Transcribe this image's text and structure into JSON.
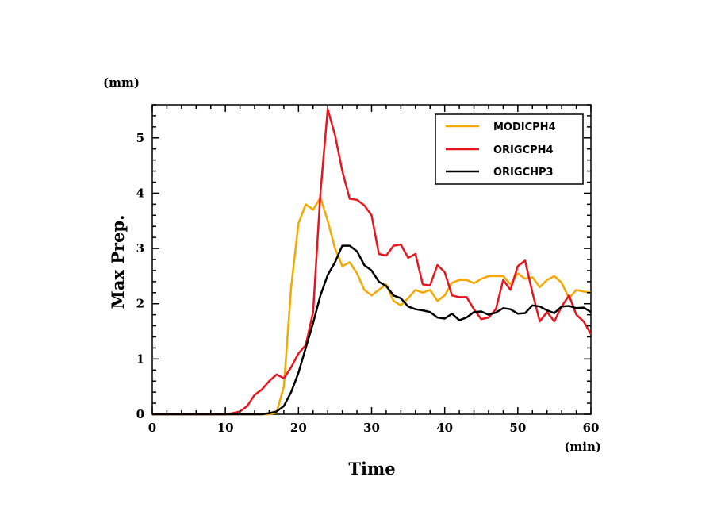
{
  "chart_data": {
    "type": "line",
    "title": "",
    "xlabel": "Time",
    "ylabel": "Max Prep.",
    "xunit": "(min)",
    "yunit": "(mm)",
    "xlim": [
      0,
      60
    ],
    "ylim": [
      0,
      5.6
    ],
    "xticks": [
      0,
      10,
      20,
      30,
      40,
      50,
      60
    ],
    "yticks": [
      0,
      1,
      2,
      3,
      4,
      5
    ],
    "grid": false,
    "legend_position": "top-right",
    "series": [
      {
        "name": "MODICPH4",
        "color": "#f5a800",
        "x": [
          0,
          1,
          2,
          3,
          4,
          5,
          6,
          7,
          8,
          9,
          10,
          11,
          12,
          13,
          14,
          15,
          16,
          17,
          18,
          19,
          20,
          21,
          22,
          23,
          24,
          25,
          26,
          27,
          28,
          29,
          30,
          31,
          32,
          33,
          34,
          35,
          36,
          37,
          38,
          39,
          40,
          41,
          42,
          43,
          44,
          45,
          46,
          47,
          48,
          49,
          50,
          51,
          52,
          53,
          54,
          55,
          56,
          57,
          58,
          59,
          60
        ],
        "y": [
          0,
          0,
          0,
          0,
          0,
          0,
          0,
          0,
          0,
          0,
          0,
          0,
          0,
          0,
          0,
          0,
          0,
          0.03,
          0.5,
          2.3,
          3.45,
          3.8,
          3.7,
          3.92,
          3.5,
          3.0,
          2.68,
          2.75,
          2.55,
          2.25,
          2.15,
          2.25,
          2.35,
          2.05,
          1.97,
          2.1,
          2.25,
          2.2,
          2.25,
          2.05,
          2.15,
          2.38,
          2.43,
          2.43,
          2.37,
          2.45,
          2.5,
          2.5,
          2.5,
          2.35,
          2.55,
          2.45,
          2.48,
          2.3,
          2.43,
          2.5,
          2.38,
          2.1,
          2.25,
          2.22,
          2.2
        ]
      },
      {
        "name": "ORIGCPH4",
        "color": "#e8141e",
        "x": [
          0,
          1,
          2,
          3,
          4,
          5,
          6,
          7,
          8,
          9,
          10,
          11,
          12,
          13,
          14,
          15,
          16,
          17,
          18,
          19,
          20,
          21,
          22,
          23,
          24,
          25,
          26,
          27,
          28,
          29,
          30,
          31,
          32,
          33,
          34,
          35,
          36,
          37,
          38,
          39,
          40,
          41,
          42,
          43,
          44,
          45,
          46,
          47,
          48,
          49,
          50,
          51,
          52,
          53,
          54,
          55,
          56,
          57,
          58,
          59,
          60
        ],
        "y": [
          0,
          0,
          0,
          0,
          0,
          0,
          0,
          0,
          0,
          0,
          0,
          0.02,
          0.05,
          0.15,
          0.35,
          0.45,
          0.6,
          0.72,
          0.65,
          0.85,
          1.1,
          1.25,
          1.85,
          4.0,
          5.52,
          5.05,
          4.4,
          3.9,
          3.88,
          3.78,
          3.6,
          2.9,
          2.87,
          3.05,
          3.07,
          2.83,
          2.9,
          2.35,
          2.33,
          2.7,
          2.57,
          2.15,
          2.12,
          2.12,
          1.9,
          1.72,
          1.75,
          1.9,
          2.43,
          2.25,
          2.68,
          2.78,
          2.2,
          1.68,
          1.85,
          1.68,
          1.95,
          2.15,
          1.8,
          1.68,
          1.45
        ]
      },
      {
        "name": "ORIGCHP3",
        "color": "#000000",
        "x": [
          0,
          1,
          2,
          3,
          4,
          5,
          6,
          7,
          8,
          9,
          10,
          11,
          12,
          13,
          14,
          15,
          16,
          17,
          18,
          19,
          20,
          21,
          22,
          23,
          24,
          25,
          26,
          27,
          28,
          29,
          30,
          31,
          32,
          33,
          34,
          35,
          36,
          37,
          38,
          39,
          40,
          41,
          42,
          43,
          44,
          45,
          46,
          47,
          48,
          49,
          50,
          51,
          52,
          53,
          54,
          55,
          56,
          57,
          58,
          59,
          60
        ],
        "y": [
          0,
          0,
          0,
          0,
          0,
          0,
          0,
          0,
          0,
          0,
          0,
          0,
          0,
          0,
          0,
          0,
          0.02,
          0.05,
          0.15,
          0.4,
          0.75,
          1.2,
          1.65,
          2.15,
          2.52,
          2.75,
          3.05,
          3.05,
          2.95,
          2.7,
          2.6,
          2.4,
          2.32,
          2.15,
          2.1,
          1.95,
          1.9,
          1.88,
          1.85,
          1.75,
          1.73,
          1.82,
          1.7,
          1.75,
          1.85,
          1.86,
          1.8,
          1.84,
          1.92,
          1.9,
          1.82,
          1.83,
          1.97,
          1.95,
          1.88,
          1.83,
          1.95,
          1.96,
          1.92,
          1.93,
          1.85
        ]
      }
    ]
  }
}
